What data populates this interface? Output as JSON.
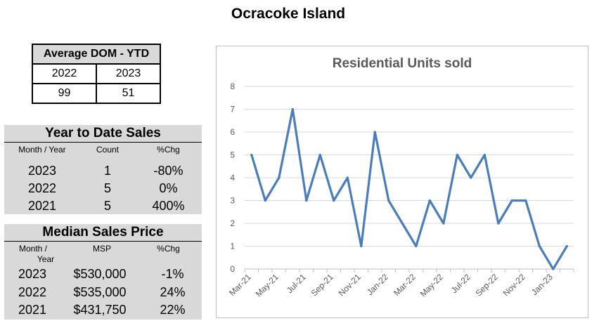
{
  "page_title": "Ocracoke Island",
  "dom_table": {
    "header": "Average DOM - YTD",
    "years": [
      "2022",
      "2023"
    ],
    "values": [
      "99",
      "51"
    ]
  },
  "ytd_sales": {
    "title": "Year to Date Sales",
    "headers": [
      "Month / Year",
      "Count",
      "%Chg"
    ],
    "rows": [
      {
        "year": "2023",
        "count": "1",
        "chg": "-80%"
      },
      {
        "year": "2022",
        "count": "5",
        "chg": "0%"
      },
      {
        "year": "2021",
        "count": "5",
        "chg": "400%"
      }
    ]
  },
  "median_price": {
    "title": "Median Sales Price",
    "headers": [
      "Month /",
      "Year",
      "MSP",
      "%Chg"
    ],
    "rows": [
      {
        "year": "2023",
        "msp": "$530,000",
        "chg": "-1%"
      },
      {
        "year": "2022",
        "msp": "$535,000",
        "chg": "24%"
      },
      {
        "year": "2021",
        "msp": "$431,750",
        "chg": "22%"
      }
    ]
  },
  "chart_data": {
    "type": "line",
    "title": "Residential Units sold",
    "xlabel": "",
    "ylabel": "",
    "ylim": [
      0,
      8
    ],
    "yticks": [
      "0",
      "1",
      "2",
      "3",
      "4",
      "5",
      "6",
      "7",
      "8"
    ],
    "x": [
      "Mar-21",
      "Apr-21",
      "May-21",
      "Jun-21",
      "Jul-21",
      "Aug-21",
      "Sep-21",
      "Oct-21",
      "Nov-21",
      "Dec-21",
      "Jan-22",
      "Feb-22",
      "Mar-22",
      "Apr-22",
      "May-22",
      "Jun-22",
      "Jul-22",
      "Aug-22",
      "Sep-22",
      "Oct-22",
      "Nov-22",
      "Dec-22",
      "Jan-23",
      "Feb-23"
    ],
    "xtick_labels": [
      "Mar-21",
      "May-21",
      "Jul-21",
      "Sep-21",
      "Nov-21",
      "Jan-22",
      "Mar-22",
      "May-22",
      "Jul-22",
      "Sep-22",
      "Nov-22",
      "Jan-23"
    ],
    "series": [
      {
        "values": [
          5,
          3,
          4,
          7,
          3,
          5,
          3,
          4,
          1,
          6,
          3,
          2,
          1,
          3,
          2,
          5,
          4,
          5,
          2,
          3,
          3,
          1,
          0,
          1
        ]
      }
    ],
    "line_color": "#4a7ebb",
    "grid": true,
    "legend": "none"
  }
}
